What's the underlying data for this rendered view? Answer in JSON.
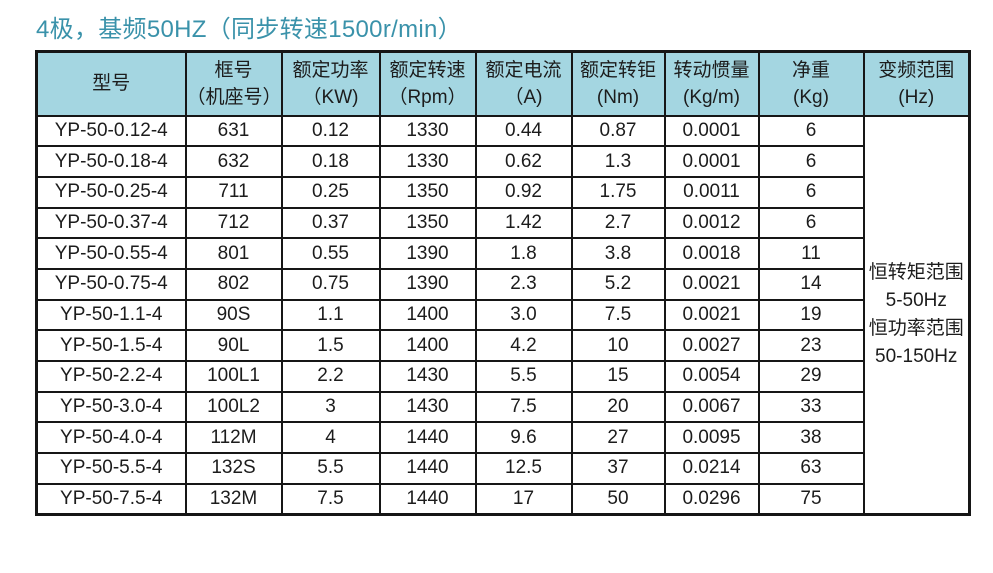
{
  "title": "4极，基频50HZ（同步转速1500r/min）",
  "colors": {
    "header_bg": "#a4d6e1",
    "title": "#3a92aa",
    "border": "#161616",
    "text": "#1c1c1c"
  },
  "table": {
    "headers": [
      {
        "line1": "型号",
        "line2": ""
      },
      {
        "line1": "框号",
        "line2": "（机座号）"
      },
      {
        "line1": "额定功率",
        "line2": "（KW)"
      },
      {
        "line1": "额定转速",
        "line2": "（Rpm）"
      },
      {
        "line1": "额定电流",
        "line2": "（A)"
      },
      {
        "line1": "额定转钜",
        "line2": "(Nm)"
      },
      {
        "line1": "转动惯量",
        "line2": "(Kg/m)"
      },
      {
        "line1": "净重",
        "line2": "(Kg)"
      },
      {
        "line1": "变频范围",
        "line2": "(Hz)"
      }
    ],
    "rows": [
      [
        "YP-50-0.12-4",
        "631",
        "0.12",
        "1330",
        "0.44",
        "0.87",
        "0.0001",
        "6"
      ],
      [
        "YP-50-0.18-4",
        "632",
        "0.18",
        "1330",
        "0.62",
        "1.3",
        "0.0001",
        "6"
      ],
      [
        "YP-50-0.25-4",
        "711",
        "0.25",
        "1350",
        "0.92",
        "1.75",
        "0.0011",
        "6"
      ],
      [
        "YP-50-0.37-4",
        "712",
        "0.37",
        "1350",
        "1.42",
        "2.7",
        "0.0012",
        "6"
      ],
      [
        "YP-50-0.55-4",
        "801",
        "0.55",
        "1390",
        "1.8",
        "3.8",
        "0.0018",
        "11"
      ],
      [
        "YP-50-0.75-4",
        "802",
        "0.75",
        "1390",
        "2.3",
        "5.2",
        "0.0021",
        "14"
      ],
      [
        "YP-50-1.1-4",
        "90S",
        "1.1",
        "1400",
        "3.0",
        "7.5",
        "0.0021",
        "19"
      ],
      [
        "YP-50-1.5-4",
        "90L",
        "1.5",
        "1400",
        "4.2",
        "10",
        "0.0027",
        "23"
      ],
      [
        "YP-50-2.2-4",
        "100L1",
        "2.2",
        "1430",
        "5.5",
        "15",
        "0.0054",
        "29"
      ],
      [
        "YP-50-3.0-4",
        "100L2",
        "3",
        "1430",
        "7.5",
        "20",
        "0.0067",
        "33"
      ],
      [
        "YP-50-4.0-4",
        "112M",
        "4",
        "1440",
        "9.6",
        "27",
        "0.0095",
        "38"
      ],
      [
        "YP-50-5.5-4",
        "132S",
        "5.5",
        "1440",
        "12.5",
        "37",
        "0.0214",
        "63"
      ],
      [
        "YP-50-7.5-4",
        "132M",
        "7.5",
        "1440",
        "17",
        "50",
        "0.0296",
        "75"
      ]
    ],
    "frequency_range": {
      "lines": [
        "恒转矩范围",
        "5-50Hz",
        "恒功率范围",
        "50-150Hz"
      ]
    }
  }
}
